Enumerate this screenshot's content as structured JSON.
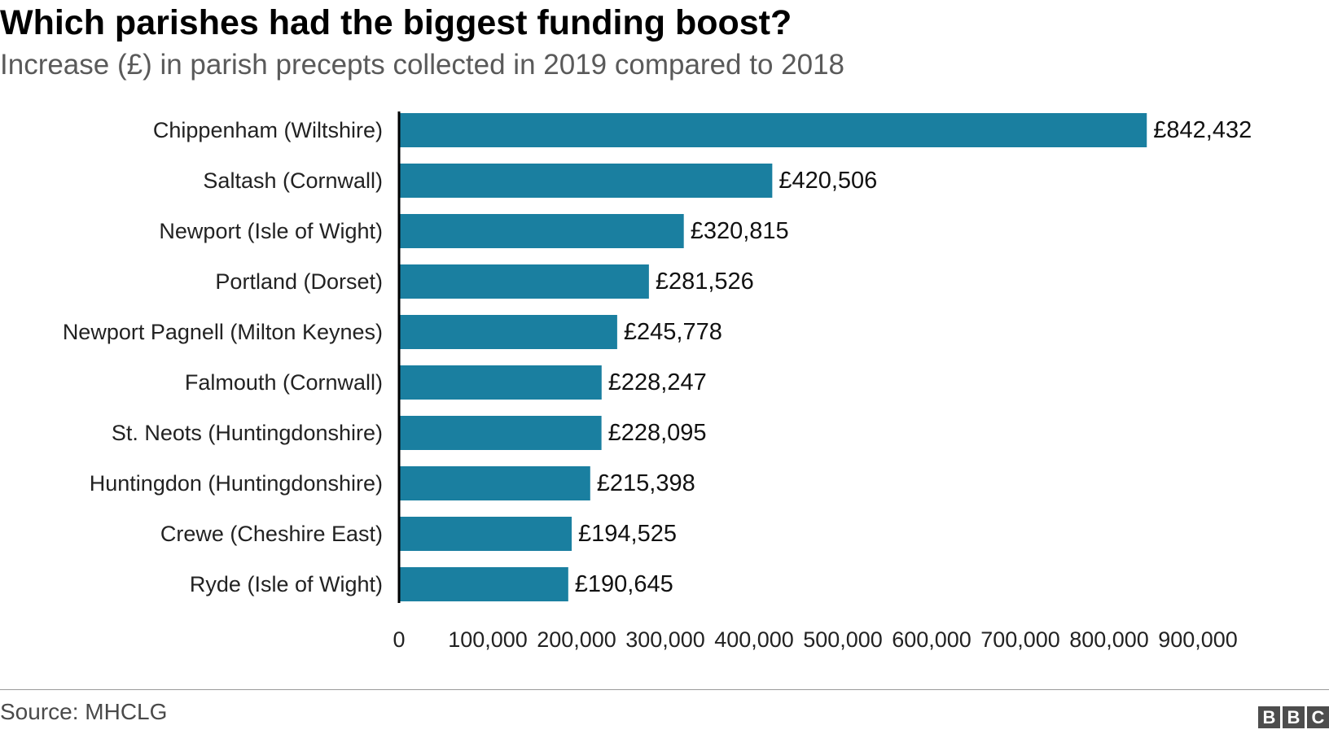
{
  "title": "Which parishes had the biggest funding boost?",
  "subtitle": "Increase (£) in parish precepts collected in 2019 compared to 2018",
  "source": "Source: MHCLG",
  "logo": [
    "B",
    "B",
    "C"
  ],
  "colors": {
    "bar": "#1a7fa0",
    "axis": "#000000",
    "text": "#222222"
  },
  "chart_data": {
    "type": "bar",
    "orientation": "horizontal",
    "title": "Which parishes had the biggest funding boost?",
    "subtitle": "Increase (£) in parish precepts collected in 2019 compared to 2018",
    "categories": [
      "Chippenham (Wiltshire)",
      "Saltash (Cornwall)",
      "Newport (Isle of Wight)",
      "Portland (Dorset)",
      "Newport Pagnell (Milton Keynes)",
      "Falmouth (Cornwall)",
      "St. Neots (Huntingdonshire)",
      "Huntingdon (Huntingdonshire)",
      "Crewe (Cheshire East)",
      "Ryde (Isle of Wight)"
    ],
    "values": [
      842432,
      420506,
      320815,
      281526,
      245778,
      228247,
      228095,
      215398,
      194525,
      190645
    ],
    "value_labels": [
      "£842,432",
      "£420,506",
      "£320,815",
      "£281,526",
      "£245,778",
      "£228,247",
      "£228,095",
      "£215,398",
      "£194,525",
      "£190,645"
    ],
    "xlim": [
      0,
      900000
    ],
    "xticks": [
      0,
      100000,
      200000,
      300000,
      400000,
      500000,
      600000,
      700000,
      800000,
      900000
    ],
    "xtick_labels": [
      "0",
      "100,000",
      "200,000",
      "300,000",
      "400,000",
      "500,000",
      "600,000",
      "700,000",
      "800,000",
      "900,000"
    ],
    "xlabel": "",
    "ylabel": "",
    "grid": false,
    "legend": "none"
  }
}
